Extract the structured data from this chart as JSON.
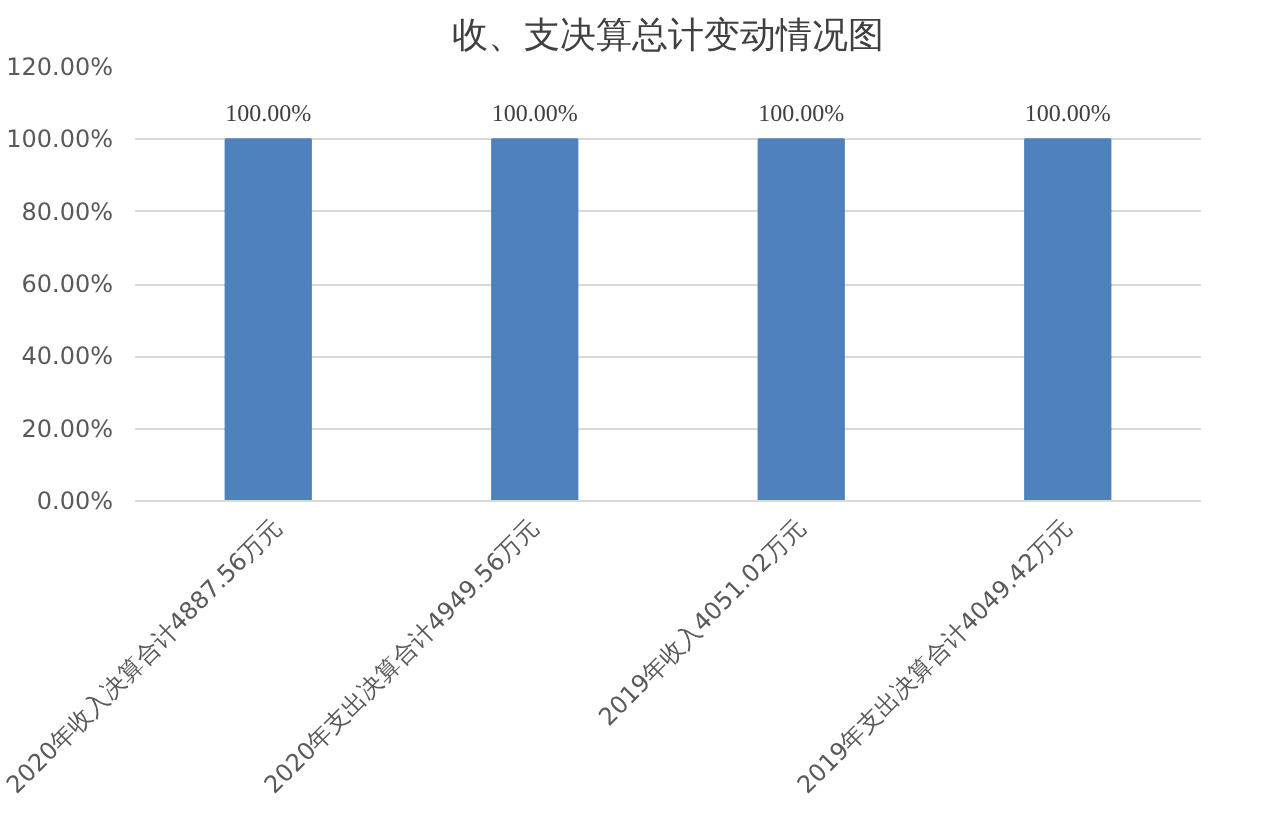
{
  "chart_data": {
    "type": "bar",
    "title": "收、支决算总计变动情况图",
    "categories": [
      "2020年收入决算合计4887.56万元",
      "2020年支出决算合计4949.56万元",
      "2019年收入4051.02万元",
      "2019年支出决算合计4049.42万元"
    ],
    "values": [
      100,
      100,
      100,
      100
    ],
    "value_labels": [
      "100.00%",
      "100.00%",
      "100.00%",
      "100.00%"
    ],
    "color": "#4f81bd",
    "ylim": [
      0,
      120
    ],
    "yticks": [
      {
        "value": 0,
        "label": "0.00%"
      },
      {
        "value": 20,
        "label": "20.00%"
      },
      {
        "value": 40,
        "label": "40.00%"
      },
      {
        "value": 60,
        "label": "60.00%"
      },
      {
        "value": 80,
        "label": "80.00%"
      },
      {
        "value": 100,
        "label": "100.00%"
      },
      {
        "value": 120,
        "label": "120.00%"
      }
    ],
    "grid": "y"
  }
}
